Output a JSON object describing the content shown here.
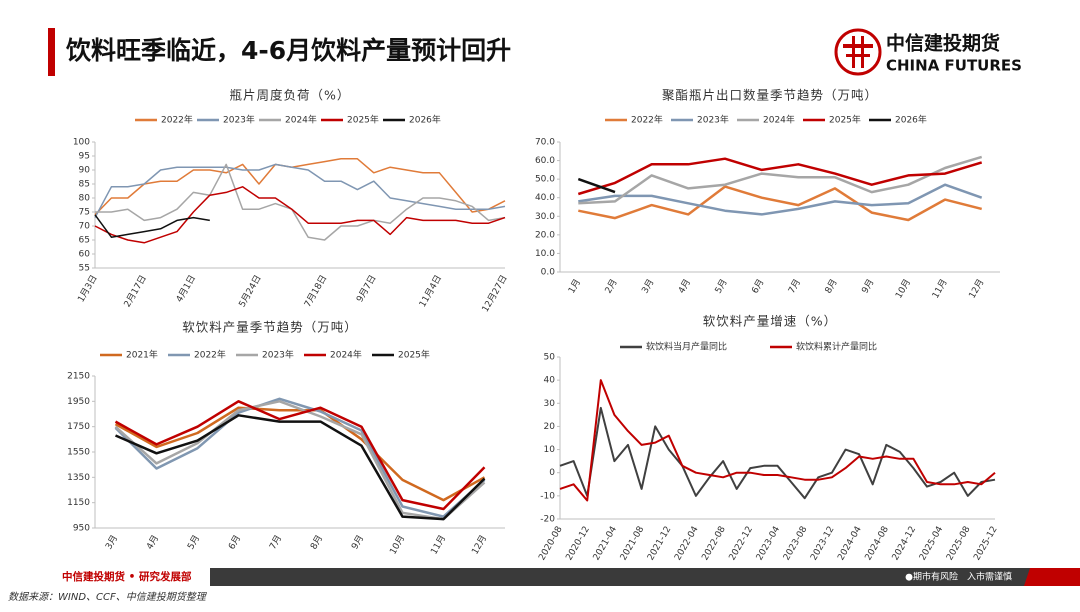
{
  "header": {
    "title": "饮料旺季临近，4-6月饮料产量预计回升",
    "logo_cn": "中信建投期货",
    "logo_en": "CHINA FUTURES"
  },
  "footer": {
    "department": "中信建投期货 • 研究发展部",
    "warning": "●期市有风险　入市需谨慎",
    "source": "数据来源：WIND、CCF、中信建投期货整理"
  },
  "chart_data": [
    {
      "type": "line",
      "title": "瓶片周度负荷（%）",
      "categories": [
        "1月3日",
        null,
        null,
        "2月17日",
        null,
        null,
        "4月1日",
        null,
        null,
        null,
        "5月24日",
        null,
        null,
        null,
        "7月18日",
        null,
        null,
        "9月7日",
        null,
        null,
        null,
        "11月4日",
        null,
        null,
        null,
        "12月27日"
      ],
      "series": [
        {
          "name": "2022年",
          "color": "#e07b39",
          "values": [
            74,
            80,
            80,
            85,
            86,
            86,
            90,
            90,
            89,
            92,
            85,
            92,
            91,
            92,
            93,
            94,
            94,
            89,
            91,
            90,
            89,
            89,
            82,
            75,
            76,
            79
          ]
        },
        {
          "name": "2023年",
          "color": "#7f96b2",
          "values": [
            73,
            84,
            84,
            85,
            90,
            91,
            91,
            91,
            91,
            90,
            90,
            92,
            91,
            90,
            86,
            86,
            83,
            86,
            80,
            79,
            78,
            77,
            76,
            76,
            76,
            77
          ]
        },
        {
          "name": "2024年",
          "color": "#a6a6a6",
          "values": [
            75,
            75,
            76,
            72,
            73,
            76,
            82,
            81,
            92,
            76,
            76,
            78,
            76,
            66,
            65,
            70,
            70,
            72,
            71,
            76,
            80,
            80,
            79,
            77,
            72,
            73
          ]
        },
        {
          "name": "2025年",
          "color": "#c00000",
          "values": [
            70,
            67,
            65,
            64,
            66,
            68,
            75,
            81,
            82,
            84,
            80,
            80,
            76,
            71,
            71,
            71,
            72,
            72,
            67,
            73,
            72,
            72,
            72,
            71,
            71,
            73
          ]
        },
        {
          "name": "2026年",
          "color": "#111111",
          "values": [
            74,
            66,
            67,
            68,
            69,
            72,
            73,
            72,
            null,
            null,
            null,
            null,
            null,
            null,
            null,
            null,
            null,
            null,
            null,
            null,
            null,
            null,
            null,
            null,
            null,
            null
          ]
        }
      ],
      "ylim": [
        55,
        100
      ],
      "yticks": [
        55,
        60,
        65,
        70,
        75,
        80,
        85,
        90,
        95,
        100
      ],
      "grid": false
    },
    {
      "type": "line",
      "title": "聚酯瓶片出口数量季节趋势（万吨）",
      "categories": [
        "1月",
        "2月",
        "3月",
        "4月",
        "5月",
        "6月",
        "7月",
        "8月",
        "9月",
        "10月",
        "11月",
        "12月"
      ],
      "series": [
        {
          "name": "2022年",
          "color": "#e07b39",
          "values": [
            33,
            29,
            36,
            31,
            46,
            40,
            36,
            45,
            32,
            28,
            39,
            34
          ]
        },
        {
          "name": "2023年",
          "color": "#7f96b2",
          "values": [
            38,
            41,
            41,
            37,
            33,
            31,
            34,
            38,
            36,
            37,
            47,
            40
          ]
        },
        {
          "name": "2024年",
          "color": "#a6a6a6",
          "values": [
            37,
            38,
            52,
            45,
            47,
            53,
            51,
            51,
            43,
            47,
            56,
            62
          ]
        },
        {
          "name": "2025年",
          "color": "#c00000",
          "values": [
            42,
            48,
            58,
            58,
            61,
            55,
            58,
            53,
            47,
            52,
            53,
            59
          ]
        },
        {
          "name": "2026年",
          "color": "#111111",
          "values": [
            50,
            43,
            null,
            null,
            null,
            null,
            null,
            null,
            null,
            null,
            null,
            null
          ]
        }
      ],
      "ylim": [
        0,
        70
      ],
      "yticks": [
        {
          "value": 0,
          "label": "0.0"
        },
        {
          "value": 10,
          "label": "10.0"
        },
        {
          "value": 20,
          "label": "20.0"
        },
        {
          "value": 30,
          "label": "30.0"
        },
        {
          "value": 40,
          "label": "40.0"
        },
        {
          "value": 50,
          "label": "50.0"
        },
        {
          "value": 60,
          "label": "60.0"
        },
        {
          "value": 70,
          "label": "70.0"
        }
      ],
      "grid": false
    },
    {
      "type": "line",
      "title": "软饮料产量季节趋势（万吨）",
      "categories": [
        "3月",
        "4月",
        "5月",
        "6月",
        "7月",
        "8月",
        "9月",
        "10月",
        "11月",
        "12月"
      ],
      "series": [
        {
          "name": "2021年",
          "color": "#d0691f",
          "values": [
            1770,
            1590,
            1700,
            1900,
            1880,
            1880,
            1650,
            1330,
            1170,
            1350
          ]
        },
        {
          "name": "2022年",
          "color": "#8097b1",
          "values": [
            1740,
            1420,
            1580,
            1860,
            1970,
            1870,
            1720,
            1120,
            1040,
            1330
          ]
        },
        {
          "name": "2023年",
          "color": "#a6a6a6",
          "values": [
            1750,
            1460,
            1620,
            1880,
            1950,
            1830,
            1690,
            1070,
            1020,
            1310
          ]
        },
        {
          "name": "2024年",
          "color": "#c00000",
          "values": [
            1790,
            1610,
            1750,
            1950,
            1810,
            1900,
            1750,
            1170,
            1100,
            1430
          ]
        },
        {
          "name": "2025年",
          "color": "#111111",
          "values": [
            1680,
            1540,
            1640,
            1840,
            1790,
            1790,
            1600,
            1040,
            1020,
            1340
          ]
        }
      ],
      "ylim": [
        950,
        2150
      ],
      "yticks": [
        950,
        1150,
        1350,
        1550,
        1750,
        1950,
        2150
      ],
      "grid": false
    },
    {
      "type": "line",
      "title": "软饮料产量增速（%）",
      "categories": [
        "2020-08",
        null,
        "2020-12",
        null,
        "2021-04",
        null,
        "2021-08",
        null,
        "2021-12",
        null,
        "2022-04",
        null,
        "2022-08",
        null,
        "2022-12",
        null,
        "2023-04",
        null,
        "2023-08",
        null,
        "2023-12",
        null,
        "2024-04",
        null,
        "2024-08",
        null,
        "2024-12",
        null,
        "2025-04",
        null,
        "2025-08",
        null,
        "2025-12"
      ],
      "series": [
        {
          "name": "软饮料当月产量同比",
          "color": "#404040",
          "values": [
            3,
            5,
            -10,
            28,
            5,
            12,
            -7,
            20,
            10,
            3,
            -10,
            -2,
            5,
            -7,
            2,
            3,
            3,
            -4,
            -11,
            -2,
            0,
            10,
            8,
            -5,
            12,
            9,
            2,
            -6,
            -4,
            0,
            -10,
            -4,
            -3
          ]
        },
        {
          "name": "软饮料累计产量同比",
          "color": "#c00000",
          "values": [
            -7,
            -5,
            -12,
            40,
            25,
            18,
            12,
            13,
            16,
            3,
            0,
            -1,
            -2,
            0,
            0,
            -1,
            -1,
            -2,
            -3,
            -3,
            -2,
            2,
            7,
            6,
            7,
            6,
            6,
            -4,
            -5,
            -5,
            -4,
            -5,
            0
          ]
        }
      ],
      "ylim": [
        -20,
        50
      ],
      "yticks": [
        -20,
        -10,
        0,
        10,
        20,
        30,
        40,
        50
      ],
      "grid": false
    }
  ]
}
